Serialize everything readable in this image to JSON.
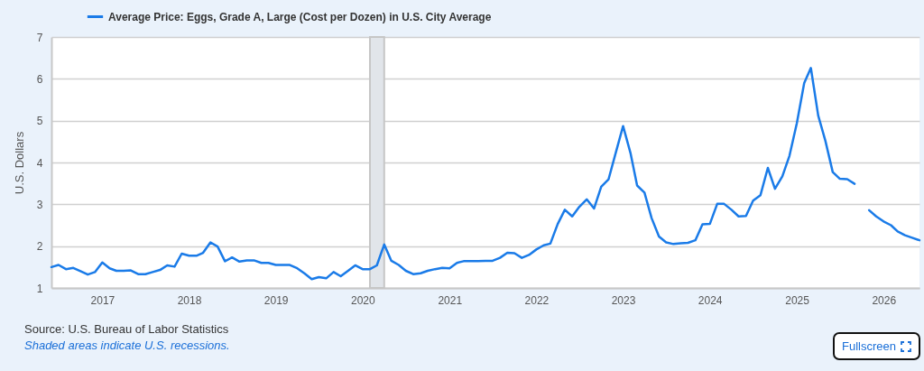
{
  "chart_data": {
    "type": "line",
    "x": [
      "2016-06",
      "2016-07",
      "2016-08",
      "2016-09",
      "2016-10",
      "2016-11",
      "2016-12",
      "2017-01",
      "2017-02",
      "2017-03",
      "2017-04",
      "2017-05",
      "2017-06",
      "2017-07",
      "2017-08",
      "2017-09",
      "2017-10",
      "2017-11",
      "2017-12",
      "2018-01",
      "2018-02",
      "2018-03",
      "2018-04",
      "2018-05",
      "2018-06",
      "2018-07",
      "2018-08",
      "2018-09",
      "2018-10",
      "2018-11",
      "2018-12",
      "2019-01",
      "2019-02",
      "2019-03",
      "2019-04",
      "2019-05",
      "2019-06",
      "2019-07",
      "2019-08",
      "2019-09",
      "2019-10",
      "2019-11",
      "2019-12",
      "2020-01",
      "2020-02",
      "2020-03",
      "2020-04",
      "2020-05",
      "2020-06",
      "2020-07",
      "2020-08",
      "2020-09",
      "2020-10",
      "2020-11",
      "2020-12",
      "2021-01",
      "2021-02",
      "2021-03",
      "2021-04",
      "2021-05",
      "2021-06",
      "2021-07",
      "2021-08",
      "2021-09",
      "2021-10",
      "2021-11",
      "2021-12",
      "2022-01",
      "2022-02",
      "2022-03",
      "2022-04",
      "2022-05",
      "2022-06",
      "2022-07",
      "2022-08",
      "2022-09",
      "2022-10",
      "2022-11",
      "2022-12",
      "2023-01",
      "2023-02",
      "2023-03",
      "2023-04",
      "2023-05",
      "2023-06",
      "2023-07",
      "2023-08",
      "2023-09",
      "2023-10",
      "2023-11",
      "2023-12",
      "2024-01",
      "2024-02",
      "2024-03",
      "2024-04",
      "2024-05",
      "2024-06",
      "2024-07",
      "2024-08",
      "2024-09",
      "2024-10",
      "2024-11",
      "2024-12",
      "2025-01",
      "2025-02",
      "2025-03",
      "2025-04",
      "2025-05",
      "2025-06",
      "2025-07",
      "2025-08",
      "2025-09",
      "2025-10",
      "2025-11",
      "2025-12",
      "2026-01",
      "2026-02",
      "2026-03",
      "2026-04",
      "2026-05",
      "2026-06"
    ],
    "series": [
      {
        "name": "Average Price: Eggs, Grade A, Large (Cost per Dozen) in U.S. City Average",
        "color": "#1a7be8",
        "values": [
          1.5,
          1.55,
          1.45,
          1.48,
          1.4,
          1.32,
          1.38,
          1.61,
          1.47,
          1.41,
          1.41,
          1.42,
          1.33,
          1.33,
          1.38,
          1.43,
          1.54,
          1.51,
          1.82,
          1.77,
          1.77,
          1.84,
          2.09,
          1.99,
          1.64,
          1.73,
          1.63,
          1.66,
          1.66,
          1.6,
          1.6,
          1.55,
          1.55,
          1.55,
          1.47,
          1.35,
          1.21,
          1.26,
          1.23,
          1.38,
          1.28,
          1.41,
          1.54,
          1.45,
          1.45,
          1.54,
          2.04,
          1.65,
          1.55,
          1.41,
          1.33,
          1.35,
          1.41,
          1.45,
          1.48,
          1.47,
          1.6,
          1.64,
          1.64,
          1.64,
          1.65,
          1.65,
          1.72,
          1.84,
          1.83,
          1.72,
          1.79,
          1.92,
          2.02,
          2.06,
          2.53,
          2.87,
          2.71,
          2.94,
          3.12,
          2.9,
          3.42,
          3.6,
          4.23,
          4.87,
          4.23,
          3.45,
          3.28,
          2.67,
          2.23,
          2.09,
          2.05,
          2.07,
          2.08,
          2.14,
          2.52,
          2.53,
          3.01,
          3.01,
          2.87,
          2.71,
          2.72,
          3.09,
          3.22,
          3.87,
          3.37,
          3.67,
          4.16,
          4.94,
          5.9,
          6.26,
          5.12,
          4.52,
          3.77,
          3.61,
          3.6,
          3.49,
          null,
          2.86,
          2.71,
          2.59,
          2.5,
          2.35,
          2.26,
          2.2,
          2.14
        ]
      }
    ],
    "xlim": [
      "2016-06",
      "2026-06"
    ],
    "xticks": [
      {
        "value": "2017",
        "label": "2017"
      },
      {
        "value": "2018",
        "label": "2018"
      },
      {
        "value": "2019",
        "label": "2019"
      },
      {
        "value": "2020",
        "label": "2020"
      },
      {
        "value": "2021",
        "label": "2021"
      },
      {
        "value": "2022",
        "label": "2022"
      },
      {
        "value": "2023",
        "label": "2023"
      },
      {
        "value": "2024",
        "label": "2024"
      },
      {
        "value": "2025",
        "label": "2025"
      },
      {
        "value": "2026",
        "label": "2026"
      }
    ],
    "ylim": [
      1,
      7
    ],
    "yticks": [
      1,
      2,
      3,
      4,
      5,
      6,
      7
    ],
    "ylabel": "U.S. Dollars",
    "grid": "y",
    "legend": "top left",
    "bands": [
      {
        "axis": "x",
        "from": "2020-02",
        "to": "2020-04",
        "color": "#e1e5ea"
      }
    ],
    "annotations": [
      "Source: U.S. Bureau of Labor Statistics",
      "Shaded areas indicate U.S. recessions.",
      "Fullscreen"
    ]
  }
}
